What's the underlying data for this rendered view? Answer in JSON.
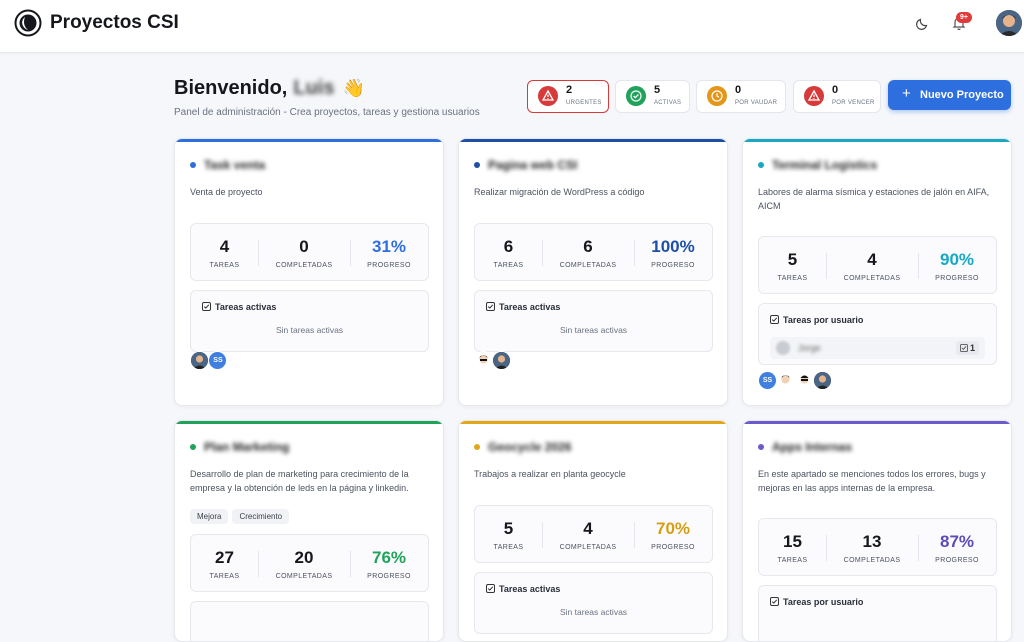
{
  "app": {
    "title": "Proyectos CSI"
  },
  "topbar": {
    "notification_count": "9+"
  },
  "header": {
    "welcome": "Bienvenido,",
    "user_name": "Luis",
    "wave": "👋",
    "subtitle": "Panel de administración - Crea proyectos, tareas y gestiona usuarios"
  },
  "stats": [
    {
      "value": "2",
      "label": "URGENTES",
      "color": "#d63a3a"
    },
    {
      "value": "5",
      "label": "ACTIVAS",
      "color": "#1fa35a"
    },
    {
      "value": "0",
      "label": "POR VAUDAR",
      "color": "#e39618"
    },
    {
      "value": "0",
      "label": "POR VENCER",
      "color": "#d63a3a"
    }
  ],
  "new_project_label": "Nuevo Proyecto",
  "labels": {
    "tareas": "TAREAS",
    "completadas": "COMPLETADAS",
    "progreso": "PROGRESO",
    "tareas_activas": "Tareas activas",
    "tareas_por_usuario": "Tareas por usuario",
    "sin_tareas": "Sin tareas activas"
  },
  "projects": [
    {
      "name": "Task venta",
      "description": "Venta de proyecto",
      "tasks": "4",
      "completed": "0",
      "progress": "31%",
      "accent": "#2e6fe0",
      "progress_color": "#2e6fe0"
    },
    {
      "name": "Pagina web CSI",
      "description": "Realizar migración de WordPress a código",
      "tasks": "6",
      "completed": "6",
      "progress": "100%",
      "accent": "#1d4fa8",
      "progress_color": "#1d4fa8"
    },
    {
      "name": "Terminal Logistics",
      "description": "Labores de alarma sísmica y estaciones de jalón en AIFA, AICM",
      "tasks": "5",
      "completed": "4",
      "progress": "90%",
      "accent": "#17a9c4",
      "progress_color": "#17a9c4",
      "user_task": {
        "name": "Jorge",
        "count": "1"
      }
    },
    {
      "name": "Plan Marketing",
      "description": "Desarrollo de plan de marketing para crecimiento de la empresa y la obtención de leds en la página y linkedin.",
      "tags": [
        "Mejora",
        "Crecimiento"
      ],
      "tasks": "27",
      "completed": "20",
      "progress": "76%",
      "accent": "#1fa35a",
      "progress_color": "#1fa35a"
    },
    {
      "name": "Geocycle 2026",
      "description": "Trabajos a realizar en planta geocycle",
      "tasks": "5",
      "completed": "4",
      "progress": "70%",
      "accent": "#e3a618",
      "progress_color": "#d69e12"
    },
    {
      "name": "Apps Internas",
      "description": "En este apartado se menciones todos los errores, bugs y mejoras en las apps internas de la empresa.",
      "tasks": "15",
      "completed": "13",
      "progress": "87%",
      "accent": "#6a5acd",
      "progress_color": "#5d4bb8"
    }
  ],
  "avatar_initials": "SS"
}
